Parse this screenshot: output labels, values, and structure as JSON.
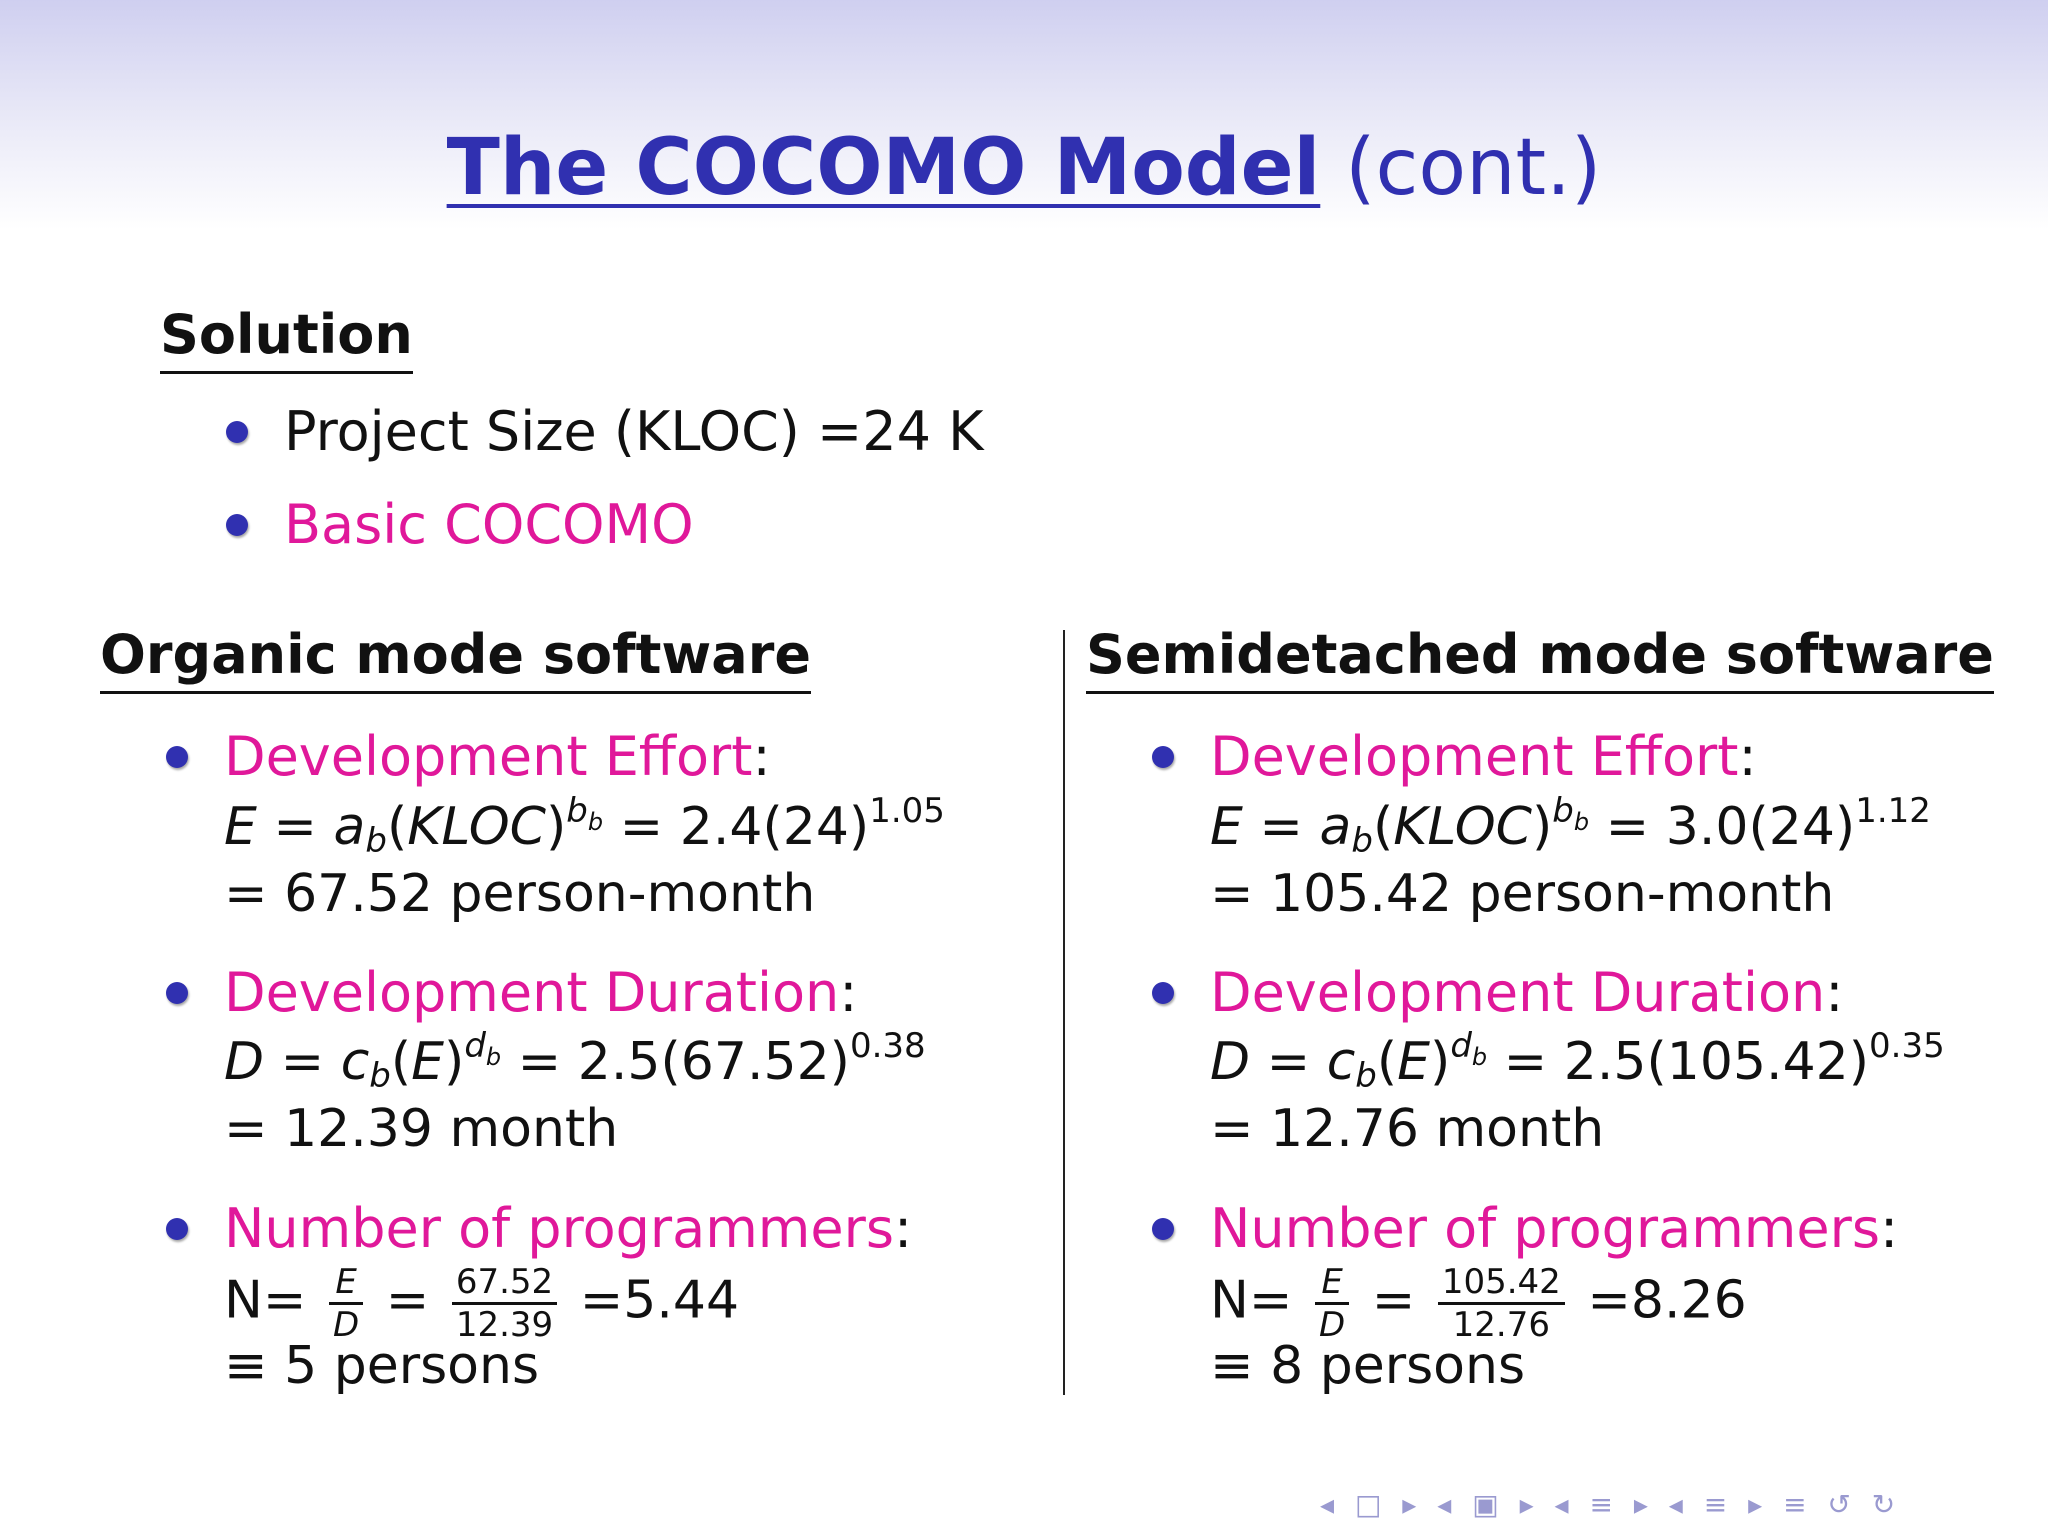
{
  "title": {
    "main": "The COCOMO Model",
    "cont": "(cont.)"
  },
  "solution": {
    "heading": "Solution",
    "items": [
      {
        "text": "Project Size (KLOC) =24 K"
      },
      {
        "text": "Basic COCOMO"
      }
    ]
  },
  "organic": {
    "heading": "Organic mode software",
    "effort": {
      "label": "Development Effort",
      "result": "= 67.52 person-month",
      "coef": "2.4(24)",
      "exp": "1.05"
    },
    "duration": {
      "label": "Development Duration",
      "result": "= 12.39 month",
      "coef": "2.5(67.52)",
      "exp": "0.38"
    },
    "programmers": {
      "label": "Number of programmers",
      "num": "67.52",
      "den": "12.39",
      "value": "=5.44",
      "result": "≡ 5 persons"
    }
  },
  "semidetached": {
    "heading": "Semidetached mode software",
    "effort": {
      "label": "Development Effort",
      "result": "= 105.42 person-month",
      "coef": "3.0(24)",
      "exp": "1.12"
    },
    "duration": {
      "label": "Development Duration",
      "result": "= 12.76 month",
      "coef": "2.5(105.42)",
      "exp": "0.35"
    },
    "programmers": {
      "label": "Number of programmers",
      "num": "105.42",
      "den": "12.76",
      "value": "=8.26",
      "result": "≡ 8 persons"
    }
  },
  "nav": {
    "symbols": "◂ □ ▸ ◂ ▣ ▸ ◂ ≡ ▸ ◂ ≡ ▸   ≡   ↺ ↻"
  },
  "colors": {
    "title_blue": "#3030b0",
    "magenta": "#e0189a",
    "bullet_blue": "#3030b0"
  }
}
